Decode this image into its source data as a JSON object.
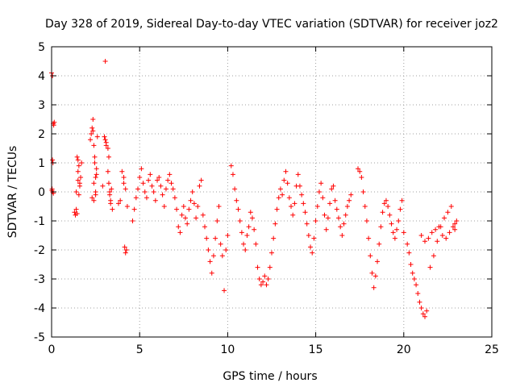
{
  "chart_data": {
    "type": "scatter",
    "title": "Day 328 of 2019, Sidereal Day-to-day VTEC variation (SDTVAR) for receiver joz2",
    "xlabel": "GPS time / hours",
    "ylabel": "SDTVAR / TECUs",
    "xlim": [
      0,
      25
    ],
    "ylim": [
      -5,
      5
    ],
    "xticks": [
      "0",
      "5",
      "10",
      "15",
      "20",
      "25"
    ],
    "yticks": [
      "-5",
      "-4",
      "-3",
      "-2",
      "-1",
      "0",
      "1",
      "2",
      "3",
      "4",
      "5"
    ],
    "grid": true,
    "marker": "+",
    "series_color": "#ff0000",
    "series": [
      {
        "name": "SDTVAR",
        "x": [
          0.0,
          0.05,
          0.1,
          0.12,
          0.15,
          0.05,
          0.08,
          0.03,
          0.06,
          1.3,
          1.35,
          1.4,
          1.45,
          1.5,
          1.55,
          1.6,
          1.65,
          1.7,
          1.4,
          1.5,
          1.6,
          1.45,
          1.55,
          1.5,
          2.2,
          2.25,
          2.3,
          2.35,
          2.4,
          2.45,
          2.5,
          2.55,
          2.6,
          2.3,
          2.4,
          2.5,
          2.35,
          2.45,
          2.55,
          2.4,
          3.0,
          3.1,
          3.2,
          3.25,
          3.3,
          3.35,
          3.4,
          3.45,
          3.1,
          3.2,
          3.3,
          3.25,
          3.35,
          2.9,
          3.05,
          3.8,
          3.9,
          4.0,
          4.1,
          4.15,
          4.2,
          4.25,
          4.1,
          4.2,
          4.3,
          4.6,
          4.7,
          4.8,
          4.9,
          5.0,
          5.1,
          5.2,
          5.3,
          5.4,
          5.5,
          5.6,
          5.7,
          5.8,
          5.9,
          6.0,
          6.1,
          6.2,
          6.3,
          6.4,
          6.5,
          6.6,
          6.7,
          6.8,
          6.9,
          7.0,
          7.1,
          7.2,
          7.3,
          7.4,
          7.5,
          7.6,
          7.7,
          7.8,
          7.9,
          8.0,
          8.1,
          8.2,
          8.3,
          8.4,
          8.5,
          8.6,
          8.7,
          8.8,
          8.9,
          9.0,
          9.1,
          9.2,
          9.3,
          9.4,
          9.5,
          9.6,
          9.7,
          9.8,
          9.9,
          10.0,
          10.2,
          10.3,
          10.4,
          10.5,
          10.6,
          10.7,
          10.8,
          10.9,
          11.0,
          11.1,
          11.2,
          11.3,
          11.4,
          11.5,
          11.6,
          11.7,
          11.8,
          11.9,
          12.0,
          12.1,
          12.2,
          12.3,
          12.4,
          12.5,
          12.6,
          12.7,
          12.8,
          12.9,
          13.0,
          13.1,
          13.2,
          13.3,
          13.4,
          13.5,
          13.6,
          13.7,
          13.8,
          13.9,
          14.0,
          14.1,
          14.2,
          14.3,
          14.4,
          14.5,
          14.6,
          14.7,
          14.8,
          14.9,
          15.0,
          15.1,
          15.2,
          15.3,
          15.4,
          15.5,
          15.6,
          15.7,
          15.8,
          15.9,
          16.0,
          16.1,
          16.2,
          16.3,
          16.4,
          16.5,
          16.6,
          16.7,
          16.8,
          16.9,
          17.0,
          17.4,
          17.5,
          17.6,
          17.7,
          17.8,
          17.9,
          18.0,
          18.1,
          18.2,
          18.3,
          18.4,
          18.5,
          18.6,
          18.7,
          18.8,
          18.9,
          19.0,
          19.1,
          19.2,
          19.3,
          19.4,
          19.5,
          19.6,
          19.7,
          19.8,
          19.9,
          20.0,
          20.2,
          20.3,
          20.4,
          20.5,
          20.6,
          20.7,
          20.8,
          20.9,
          21.0,
          21.1,
          21.2,
          21.3,
          21.0,
          21.2,
          21.4,
          21.6,
          21.8,
          22.0,
          22.2,
          22.4,
          22.6,
          22.8,
          22.9,
          23.0,
          21.5,
          21.7,
          21.9,
          22.1,
          22.3,
          22.5,
          22.7,
          22.9,
          3.05,
          2.5,
          0.02,
          0.1
        ],
        "y": [
          4.1,
          4.0,
          2.35,
          2.3,
          2.4,
          1.1,
          1.0,
          0.1,
          0.0,
          -0.7,
          -0.8,
          -0.6,
          -0.75,
          1.1,
          0.9,
          0.3,
          0.5,
          1.0,
          0.0,
          0.7,
          0.2,
          1.2,
          -0.1,
          0.4,
          1.8,
          2.0,
          2.2,
          2.5,
          1.6,
          1.0,
          0.5,
          0.8,
          1.9,
          -0.2,
          0.3,
          0.0,
          2.1,
          1.2,
          0.6,
          -0.3,
          1.9,
          1.7,
          1.5,
          0.3,
          -0.1,
          -0.4,
          0.1,
          -0.6,
          1.6,
          0.7,
          0.0,
          1.2,
          -0.3,
          0.2,
          1.8,
          -0.4,
          -0.3,
          0.7,
          0.5,
          -1.9,
          -2.1,
          -2.0,
          0.3,
          0.1,
          -0.5,
          -1.0,
          -0.6,
          -0.2,
          0.1,
          0.5,
          0.8,
          0.3,
          0.0,
          -0.2,
          0.4,
          0.6,
          0.2,
          0.0,
          -0.3,
          0.4,
          0.5,
          0.2,
          -0.1,
          -0.5,
          0.1,
          0.4,
          0.6,
          0.3,
          0.1,
          -0.2,
          -0.6,
          -1.2,
          -1.4,
          -0.8,
          -0.5,
          -0.9,
          -1.1,
          -0.6,
          -0.3,
          0.0,
          -0.4,
          -0.9,
          -0.5,
          0.2,
          0.4,
          -0.8,
          -1.2,
          -1.6,
          -2.0,
          -2.4,
          -2.8,
          -2.2,
          -1.6,
          -1.0,
          -0.5,
          -1.8,
          -2.2,
          -3.4,
          -2.0,
          -1.5,
          0.9,
          0.6,
          0.1,
          -0.3,
          -0.6,
          -1.0,
          -1.4,
          -1.8,
          -2.0,
          -1.5,
          -1.2,
          -0.7,
          -0.9,
          -1.3,
          -1.8,
          -2.6,
          -3.0,
          -3.2,
          -3.1,
          -2.9,
          -3.2,
          -3.0,
          -2.6,
          -2.1,
          -1.6,
          -1.1,
          -0.6,
          -0.2,
          0.1,
          -0.1,
          0.4,
          0.7,
          0.3,
          -0.2,
          -0.5,
          -0.8,
          -0.4,
          0.2,
          0.6,
          0.2,
          -0.1,
          -0.4,
          -0.7,
          -1.1,
          -1.5,
          -1.9,
          -2.1,
          -1.6,
          -1.0,
          -0.5,
          0.0,
          0.3,
          -0.2,
          -0.8,
          -1.3,
          -0.9,
          -0.4,
          0.1,
          0.2,
          -0.3,
          -0.6,
          -0.9,
          -1.2,
          -1.5,
          -1.1,
          -0.8,
          -0.5,
          -0.3,
          -0.1,
          0.8,
          0.7,
          0.5,
          0.0,
          -0.5,
          -1.0,
          -1.6,
          -2.2,
          -2.8,
          -3.3,
          -2.9,
          -2.4,
          -1.8,
          -1.2,
          -0.7,
          -0.4,
          -0.3,
          -0.5,
          -0.8,
          -1.1,
          -1.4,
          -1.6,
          -1.3,
          -1.0,
          -0.6,
          -0.3,
          -1.4,
          -1.8,
          -2.1,
          -2.5,
          -2.8,
          -3.0,
          -3.2,
          -3.5,
          -3.8,
          -4.0,
          -4.2,
          -4.3,
          -4.1,
          -1.5,
          -1.7,
          -1.6,
          -1.4,
          -1.3,
          -1.2,
          -1.5,
          -1.6,
          -1.4,
          -1.2,
          -1.1,
          -1.0,
          -2.6,
          -2.2,
          -1.7,
          -1.2,
          -0.9,
          -0.7,
          -0.5,
          -1.3,
          4.5,
          -0.1,
          0.05,
          -0.05
        ]
      }
    ]
  }
}
